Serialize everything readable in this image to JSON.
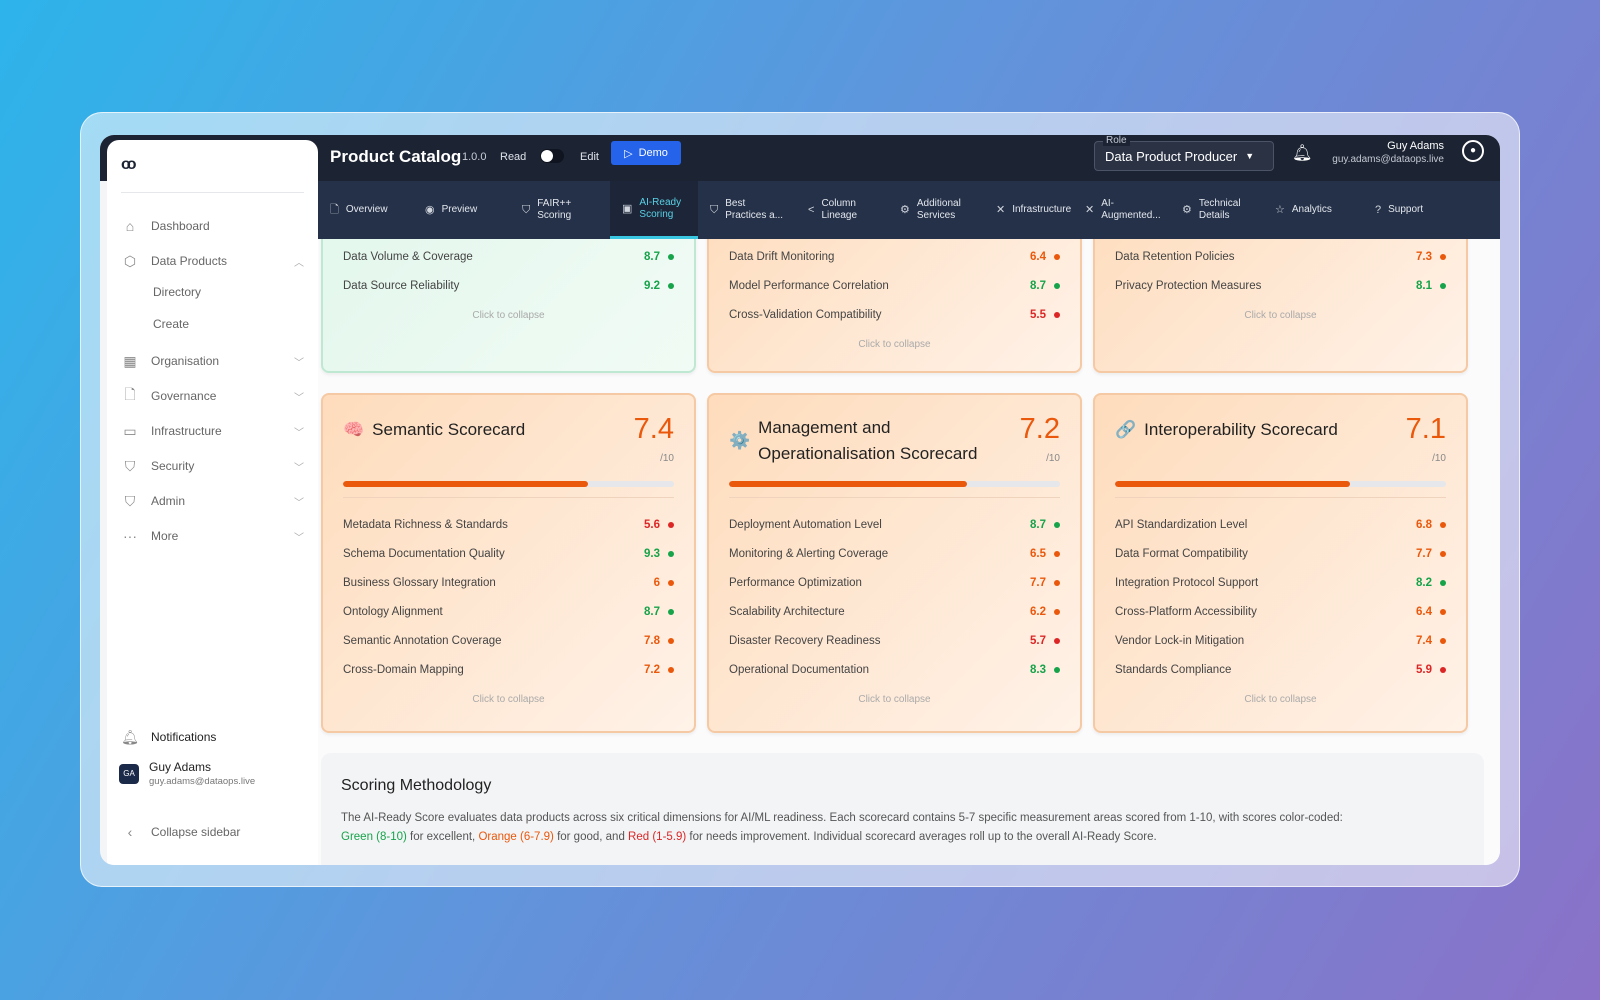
{
  "header": {
    "title": "Product Catalog",
    "version": "1.0.0",
    "read_label": "Read",
    "edit_label": "Edit",
    "demo_label": "Demo",
    "role_label": "Role",
    "role_value": "Data Product Producer",
    "user_name": "Guy Adams",
    "user_email": "guy.adams@dataops.live"
  },
  "tabs": [
    {
      "label": "Overview",
      "icon": "document-icon"
    },
    {
      "label": "Preview",
      "icon": "eye-icon"
    },
    {
      "label": "FAIR++ Scoring",
      "icon": "shield-icon"
    },
    {
      "label": "AI-Ready Scoring",
      "icon": "chip-icon",
      "active": true
    },
    {
      "label": "Best Practices a...",
      "icon": "shield-check-icon"
    },
    {
      "label": "Column Lineage",
      "icon": "share-icon"
    },
    {
      "label": "Additional Services",
      "icon": "gear-icon"
    },
    {
      "label": "Infrastructure",
      "icon": "tools-icon"
    },
    {
      "label": "AI-Augmented...",
      "icon": "tools-icon"
    },
    {
      "label": "Technical Details",
      "icon": "gear-icon"
    },
    {
      "label": "Analytics",
      "icon": "star-icon"
    },
    {
      "label": "Support",
      "icon": "help-icon"
    }
  ],
  "sidebar": {
    "items": [
      {
        "label": "Dashboard"
      },
      {
        "label": "Data Products"
      },
      {
        "label": "Organisation"
      },
      {
        "label": "Governance"
      },
      {
        "label": "Infrastructure"
      },
      {
        "label": "Security"
      },
      {
        "label": "Admin"
      },
      {
        "label": "More"
      }
    ],
    "sub_items": [
      "Directory",
      "Create"
    ],
    "notifications": "Notifications",
    "user_initials": "GA",
    "user_name": "Guy Adams",
    "user_email": "guy.adams@dataops.live",
    "collapse": "Collapse sidebar"
  },
  "colors": {
    "green": "#16a34a",
    "orange": "#ea580c",
    "red": "#dc2626"
  },
  "collapse_label": "Click to collapse",
  "top_cards": [
    {
      "theme": "green",
      "metrics": [
        {
          "name": "Data Volume & Coverage",
          "value": "8.7",
          "level": "green"
        },
        {
          "name": "Data Source Reliability",
          "value": "9.2",
          "level": "green"
        }
      ]
    },
    {
      "theme": "orange",
      "metrics": [
        {
          "name": "Data Drift Monitoring",
          "value": "6.4",
          "level": "orange"
        },
        {
          "name": "Model Performance Correlation",
          "value": "8.7",
          "level": "green"
        },
        {
          "name": "Cross-Validation Compatibility",
          "value": "5.5",
          "level": "red"
        }
      ]
    },
    {
      "theme": "orange",
      "metrics": [
        {
          "name": "Data Retention Policies",
          "value": "7.3",
          "level": "orange"
        },
        {
          "name": "Privacy Protection Measures",
          "value": "8.1",
          "level": "green"
        }
      ]
    }
  ],
  "scorecards": [
    {
      "icon": "🧠",
      "title": "Semantic Scorecard",
      "score": "7.4",
      "out_of": "/10",
      "progress": 0.74,
      "metrics": [
        {
          "name": "Metadata Richness & Standards",
          "value": "5.6",
          "level": "red"
        },
        {
          "name": "Schema Documentation Quality",
          "value": "9.3",
          "level": "green"
        },
        {
          "name": "Business Glossary Integration",
          "value": "6",
          "level": "orange"
        },
        {
          "name": "Ontology Alignment",
          "value": "8.7",
          "level": "green"
        },
        {
          "name": "Semantic Annotation Coverage",
          "value": "7.8",
          "level": "orange"
        },
        {
          "name": "Cross-Domain Mapping",
          "value": "7.2",
          "level": "orange"
        }
      ]
    },
    {
      "icon": "⚙️",
      "title": "Management and Operationalisation Scorecard",
      "score": "7.2",
      "out_of": "/10",
      "progress": 0.72,
      "metrics": [
        {
          "name": "Deployment Automation Level",
          "value": "8.7",
          "level": "green"
        },
        {
          "name": "Monitoring & Alerting Coverage",
          "value": "6.5",
          "level": "orange"
        },
        {
          "name": "Performance Optimization",
          "value": "7.7",
          "level": "orange"
        },
        {
          "name": "Scalability Architecture",
          "value": "6.2",
          "level": "orange"
        },
        {
          "name": "Disaster Recovery Readiness",
          "value": "5.7",
          "level": "red"
        },
        {
          "name": "Operational Documentation",
          "value": "8.3",
          "level": "green"
        }
      ]
    },
    {
      "icon": "🔗",
      "title": "Interoperability Scorecard",
      "score": "7.1",
      "out_of": "/10",
      "progress": 0.71,
      "metrics": [
        {
          "name": "API Standardization Level",
          "value": "6.8",
          "level": "orange"
        },
        {
          "name": "Data Format Compatibility",
          "value": "7.7",
          "level": "orange"
        },
        {
          "name": "Integration Protocol Support",
          "value": "8.2",
          "level": "green"
        },
        {
          "name": "Cross-Platform Accessibility",
          "value": "6.4",
          "level": "orange"
        },
        {
          "name": "Vendor Lock-in Mitigation",
          "value": "7.4",
          "level": "orange"
        },
        {
          "name": "Standards Compliance",
          "value": "5.9",
          "level": "red"
        }
      ]
    }
  ],
  "methodology": {
    "title": "Scoring Methodology",
    "text1": "The AI-Ready Score evaluates data products across six critical dimensions for AI/ML readiness. Each scorecard contains 5-7 specific measurement areas scored from 1-10, with scores color-coded:",
    "green": "Green (8-10)",
    "t2": " for excellent, ",
    "orange": "Orange (6-7.9)",
    "t3": " for good, and ",
    "red": "Red (1-5.9)",
    "t4": " for needs improvement. Individual scorecard averages roll up to the overall AI-Ready Score."
  }
}
